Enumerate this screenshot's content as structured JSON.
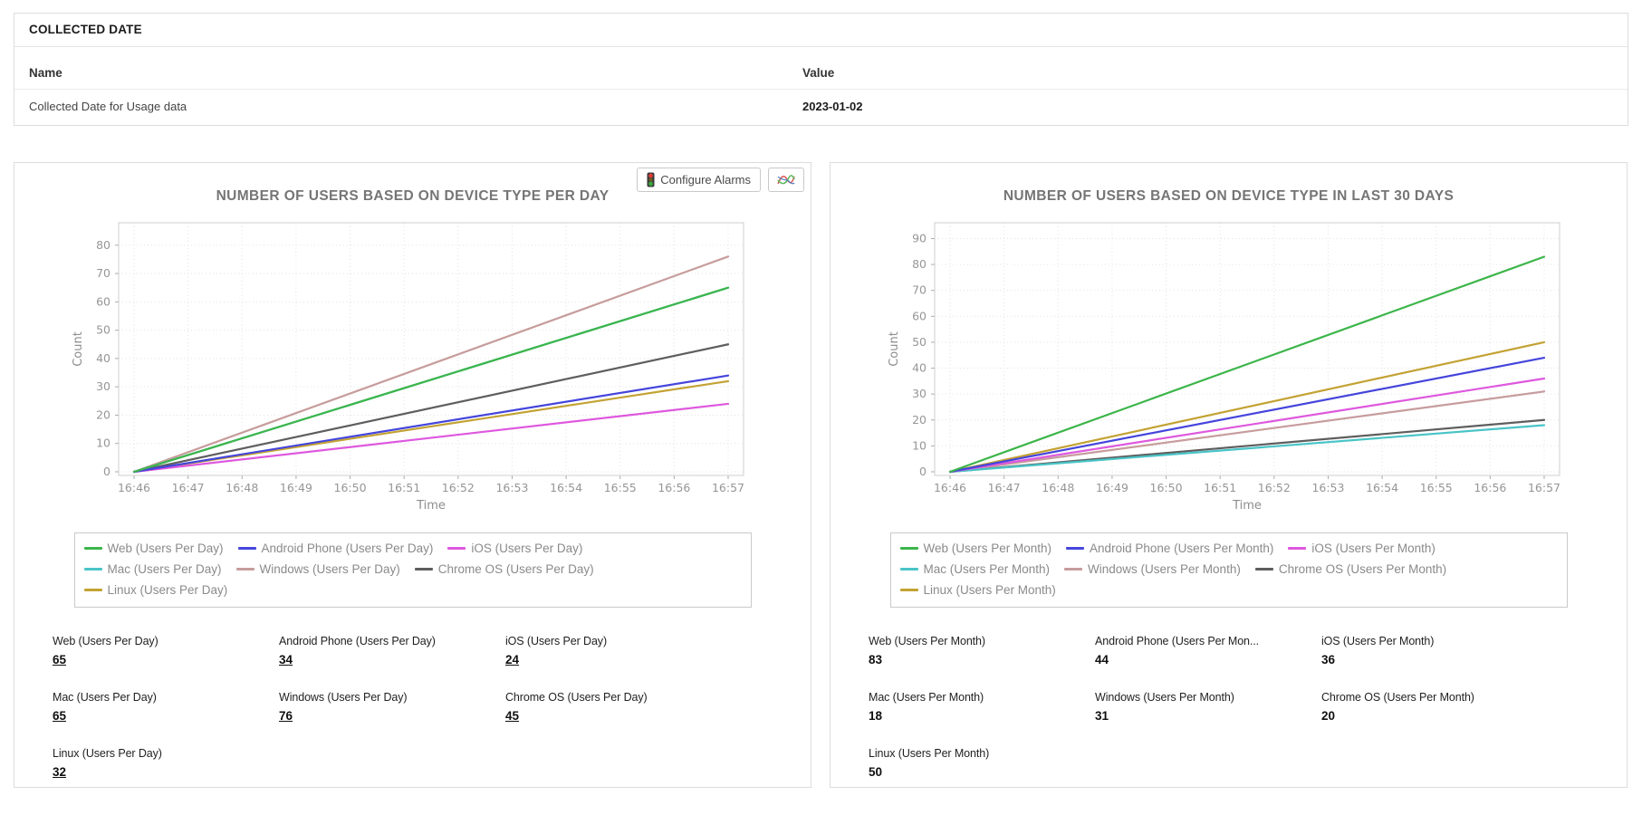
{
  "collected_date_card": {
    "title": "COLLECTED DATE",
    "columns": {
      "name": "Name",
      "value": "Value"
    },
    "rows": [
      {
        "name": "Collected Date for Usage data",
        "value": "2023-01-02"
      }
    ]
  },
  "toolbar": {
    "configure_alarms_label": "Configure Alarms",
    "icons": {
      "traffic_light": "traffic-light-icon",
      "chart_settings": "line-chart-icon"
    }
  },
  "colors": {
    "panel_border": "#dcdcdc",
    "grid_line": "#e3e3e3",
    "axis_text": "#969696",
    "title_text": "#757575",
    "legend_text": "#8a8a8a"
  },
  "chart_data": [
    {
      "type": "line",
      "title": "NUMBER OF USERS BASED ON DEVICE TYPE PER DAY",
      "xlabel": "Time",
      "ylabel": "Count",
      "x": [
        "16:46",
        "16:47",
        "16:48",
        "16:49",
        "16:50",
        "16:51",
        "16:52",
        "16:53",
        "16:54",
        "16:55",
        "16:56",
        "16:57"
      ],
      "yticks": [
        0,
        10,
        20,
        30,
        40,
        50,
        60,
        70,
        80
      ],
      "ylim": [
        0,
        86
      ],
      "grid": true,
      "legend_position": "bottom",
      "series": [
        {
          "name": "Web (Users Per Day)",
          "color": "#3cb54a",
          "points": [
            {
              "x": "16:46",
              "y": 0
            },
            {
              "x": "16:57",
              "y": 65
            }
          ]
        },
        {
          "name": "Android Phone (Users Per Day)",
          "color": "#4545dc",
          "points": [
            {
              "x": "16:46",
              "y": 0
            },
            {
              "x": "16:57",
              "y": 34
            }
          ]
        },
        {
          "name": "iOS (Users Per Day)",
          "color": "#de58de",
          "points": [
            {
              "x": "16:46",
              "y": 0
            },
            {
              "x": "16:57",
              "y": 24
            }
          ]
        },
        {
          "name": "Mac (Users Per Day)",
          "color": "#49c4c7",
          "points": [
            {
              "x": "16:46",
              "y": 0
            },
            {
              "x": "16:57",
              "y": 65
            }
          ]
        },
        {
          "name": "Windows (Users Per Day)",
          "color": "#c79c9c",
          "points": [
            {
              "x": "16:46",
              "y": 0
            },
            {
              "x": "16:57",
              "y": 76
            }
          ]
        },
        {
          "name": "Chrome OS (Users Per Day)",
          "color": "#5e5e5e",
          "points": [
            {
              "x": "16:46",
              "y": 0
            },
            {
              "x": "16:57",
              "y": 45
            }
          ]
        },
        {
          "name": "Linux (Users Per Day)",
          "color": "#c3a233",
          "points": [
            {
              "x": "16:46",
              "y": 0
            },
            {
              "x": "16:57",
              "y": 32
            }
          ]
        }
      ],
      "stats": [
        {
          "label": "Web (Users Per Day)",
          "value": "65",
          "link": true
        },
        {
          "label": "Android Phone (Users Per Day)",
          "value": "34",
          "link": true
        },
        {
          "label": "iOS (Users Per Day)",
          "value": "24",
          "link": true
        },
        {
          "label": "Mac (Users Per Day)",
          "value": "65",
          "link": true
        },
        {
          "label": "Windows (Users Per Day)",
          "value": "76",
          "link": true
        },
        {
          "label": "Chrome OS (Users Per Day)",
          "value": "45",
          "link": true
        },
        {
          "label": "Linux (Users Per Day)",
          "value": "32",
          "link": true
        }
      ]
    },
    {
      "type": "line",
      "title": "NUMBER OF USERS BASED ON DEVICE TYPE IN LAST 30 DAYS",
      "xlabel": "Time",
      "ylabel": "Count",
      "x": [
        "16:46",
        "16:47",
        "16:48",
        "16:49",
        "16:50",
        "16:51",
        "16:52",
        "16:53",
        "16:54",
        "16:55",
        "16:56",
        "16:57"
      ],
      "yticks": [
        0,
        10,
        20,
        30,
        40,
        50,
        60,
        70,
        80,
        90
      ],
      "ylim": [
        0,
        94
      ],
      "grid": true,
      "legend_position": "bottom",
      "series": [
        {
          "name": "Web (Users Per Month)",
          "color": "#3cb54a",
          "points": [
            {
              "x": "16:46",
              "y": 0
            },
            {
              "x": "16:57",
              "y": 83
            }
          ]
        },
        {
          "name": "Android Phone (Users Per Month)",
          "color": "#4545dc",
          "points": [
            {
              "x": "16:46",
              "y": 0
            },
            {
              "x": "16:57",
              "y": 44
            }
          ]
        },
        {
          "name": "iOS (Users Per Month)",
          "color": "#de58de",
          "points": [
            {
              "x": "16:46",
              "y": 0
            },
            {
              "x": "16:57",
              "y": 36
            }
          ]
        },
        {
          "name": "Mac (Users Per Month)",
          "color": "#49c4c7",
          "points": [
            {
              "x": "16:46",
              "y": 0
            },
            {
              "x": "16:57",
              "y": 18
            }
          ]
        },
        {
          "name": "Windows (Users Per Month)",
          "color": "#c79c9c",
          "points": [
            {
              "x": "16:46",
              "y": 0
            },
            {
              "x": "16:57",
              "y": 31
            }
          ]
        },
        {
          "name": "Chrome OS (Users Per Month)",
          "color": "#5e5e5e",
          "points": [
            {
              "x": "16:46",
              "y": 0
            },
            {
              "x": "16:57",
              "y": 20
            }
          ]
        },
        {
          "name": "Linux (Users Per Month)",
          "color": "#c3a233",
          "points": [
            {
              "x": "16:46",
              "y": 0
            },
            {
              "x": "16:57",
              "y": 50
            }
          ]
        }
      ],
      "stats": [
        {
          "label": "Web (Users Per Month)",
          "value": "83",
          "link": false
        },
        {
          "label": "Android Phone (Users Per Mon...",
          "value": "44",
          "link": false
        },
        {
          "label": "iOS (Users Per Month)",
          "value": "36",
          "link": false
        },
        {
          "label": "Mac (Users Per Month)",
          "value": "18",
          "link": false
        },
        {
          "label": "Windows (Users Per Month)",
          "value": "31",
          "link": false
        },
        {
          "label": "Chrome OS (Users Per Month)",
          "value": "20",
          "link": false
        },
        {
          "label": "Linux (Users Per Month)",
          "value": "50",
          "link": false
        }
      ]
    }
  ]
}
